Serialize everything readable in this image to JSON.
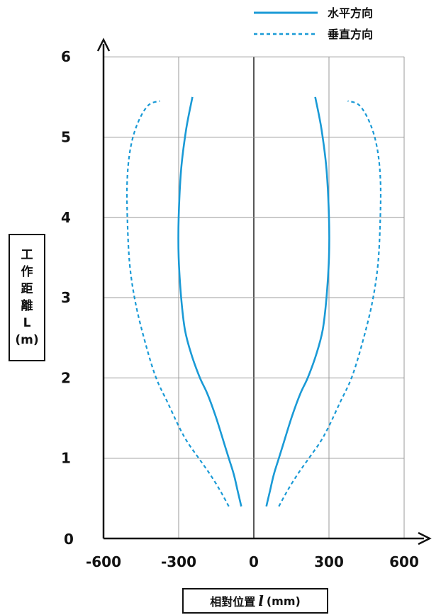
{
  "chart_data": {
    "type": "line",
    "xlabel_parts": {
      "prefix": "相對位置",
      "var": "l",
      "unit": "(mm)"
    },
    "ylabel_parts": [
      "工",
      "作",
      "距",
      "離",
      "L",
      "(m)"
    ],
    "xlim": [
      -600,
      600
    ],
    "ylim": [
      0,
      6
    ],
    "xticks": [
      "-600",
      "-300",
      "0",
      "300",
      "600"
    ],
    "yticks": [
      "0",
      "1",
      "2",
      "3",
      "4",
      "5",
      "6"
    ],
    "grid": true,
    "legend_position": "top-right",
    "series": [
      {
        "name": "水平方向",
        "style": "solid",
        "color": "#1a9ad6",
        "x_right": [
          50,
          65,
          80,
          100,
          120,
          150,
          185,
          215,
          250,
          275,
          290,
          300,
          300,
          290,
          270,
          245
        ],
        "x_left": [
          -50,
          -65,
          -80,
          -100,
          -120,
          -150,
          -185,
          -215,
          -250,
          -275,
          -290,
          -300,
          -300,
          -290,
          -270,
          -245
        ],
        "y": [
          0.4,
          0.6,
          0.8,
          1.0,
          1.2,
          1.5,
          1.8,
          2.0,
          2.3,
          2.6,
          3.0,
          3.5,
          4.0,
          4.6,
          5.1,
          5.5
        ]
      },
      {
        "name": "垂直方向",
        "style": "dashed",
        "color": "#1a9ad6",
        "x_right": [
          100,
          135,
          175,
          220,
          265,
          300,
          345,
          390,
          430,
          470,
          495,
          505,
          505,
          490,
          460,
          420,
          375
        ],
        "x_left": [
          -100,
          -135,
          -175,
          -220,
          -265,
          -300,
          -345,
          -390,
          -430,
          -470,
          -495,
          -505,
          -505,
          -490,
          -460,
          -420,
          -375
        ],
        "y": [
          0.4,
          0.6,
          0.8,
          1.0,
          1.2,
          1.4,
          1.7,
          2.0,
          2.4,
          2.9,
          3.4,
          4.0,
          4.5,
          4.9,
          5.2,
          5.4,
          5.45
        ]
      }
    ]
  }
}
